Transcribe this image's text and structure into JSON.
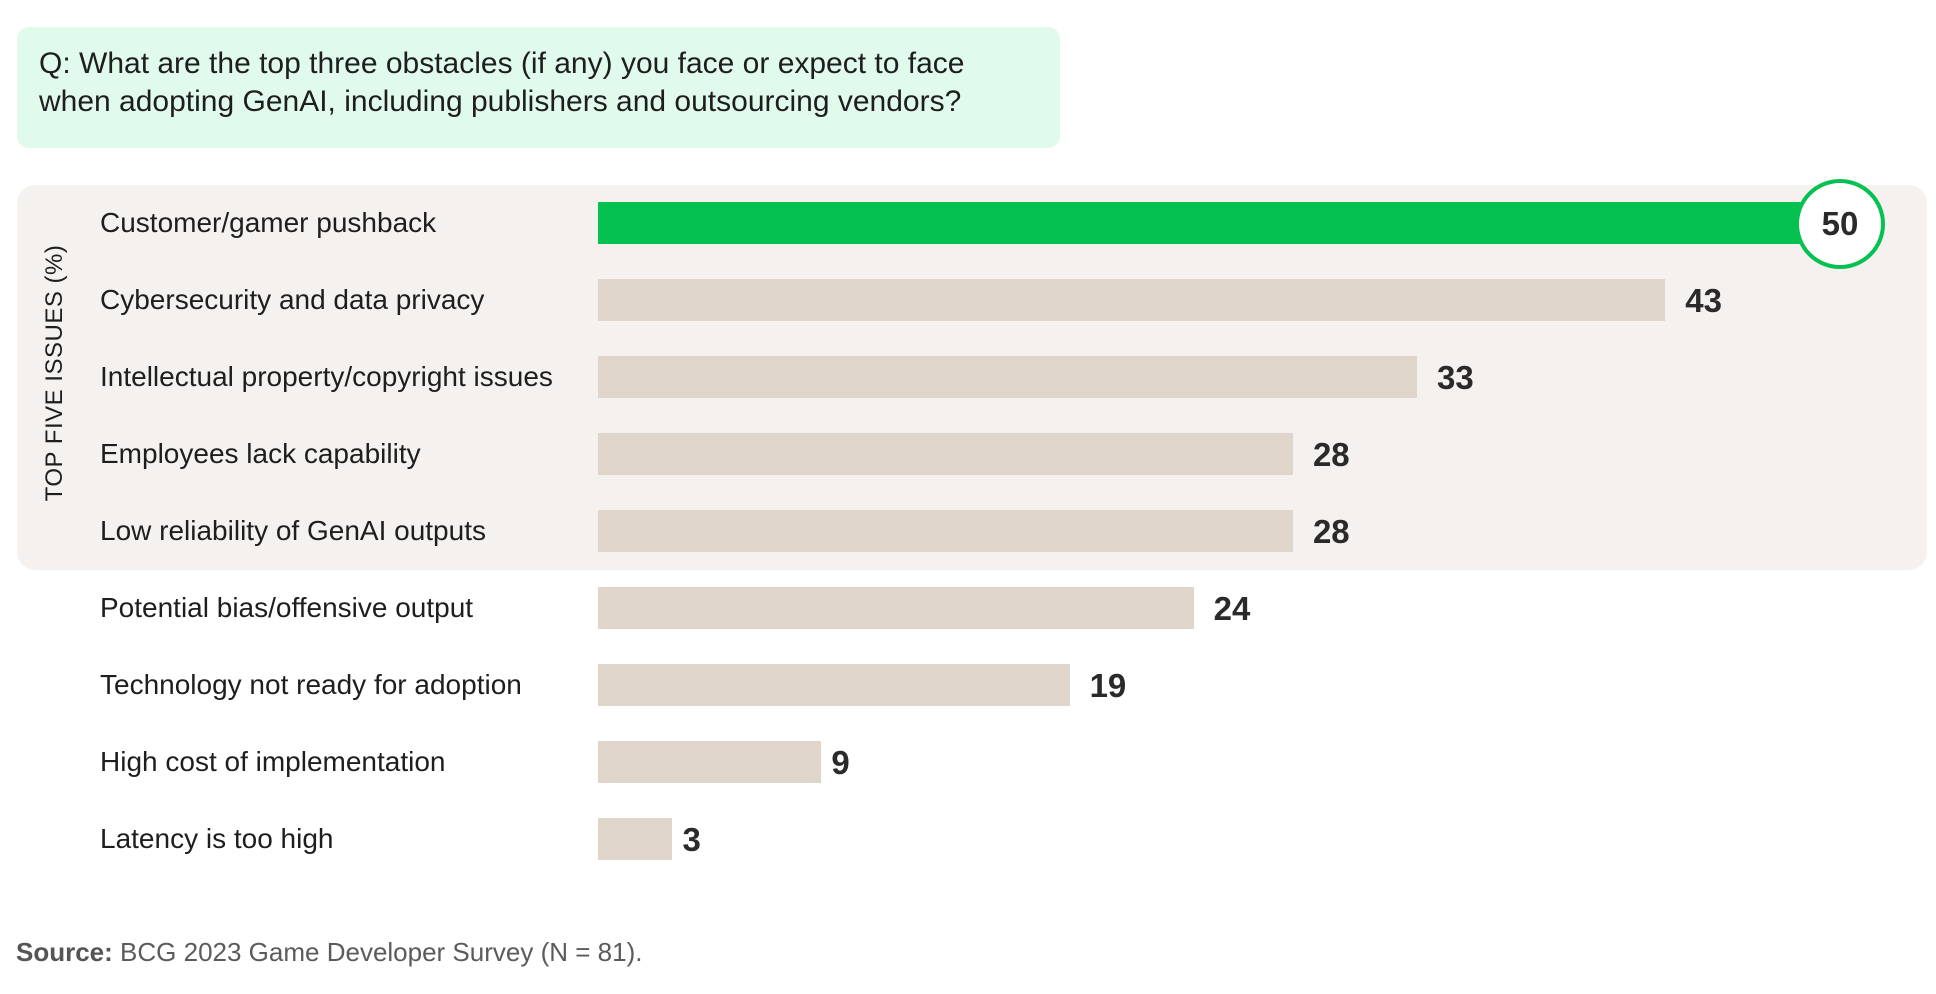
{
  "question": {
    "line1": "Q: What are the top three obstacles (if any) you face or expect to face",
    "line2": "when adopting GenAI, including publishers and outsourcing vendors?"
  },
  "side_label": "TOP FIVE ISSUES (%)",
  "chart_data": {
    "type": "bar",
    "orientation": "horizontal",
    "title": "",
    "xlabel": "",
    "ylabel": "TOP FIVE ISSUES (%)",
    "xlim": [
      0,
      50
    ],
    "grid": false,
    "categories": [
      "Customer/gamer pushback",
      "Cybersecurity and data privacy",
      "Intellectual property/copyright issues",
      "Employees lack capability",
      "Low reliability of GenAI outputs",
      "Potential bias/offensive output",
      "Technology not ready for adoption",
      "High cost of implementation",
      "Latency is too high"
    ],
    "values": [
      50,
      43,
      33,
      28,
      28,
      24,
      19,
      9,
      3
    ],
    "highlight_index": 0,
    "top_group_count": 5,
    "colors": {
      "highlight": "#04c152",
      "bar": "#dfd5cb",
      "panel": "#f4f1ee",
      "question_bg": "#e0faec"
    }
  },
  "source": {
    "label": "Source:",
    "text": "BCG 2023 Game Developer Survey (N = 81)."
  }
}
